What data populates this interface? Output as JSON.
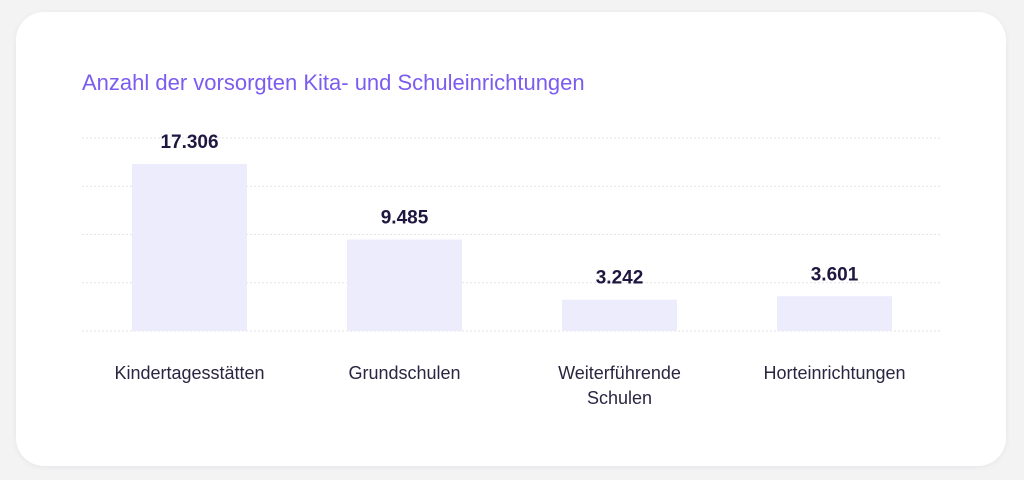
{
  "chart_data": {
    "type": "bar",
    "title": "Anzahl der vorsorgten Kita- und Schuleinrichtungen",
    "categories": [
      "Kindertagesstätten",
      "Grundschulen",
      "Weiterführende Schulen",
      "Horteinrichtungen"
    ],
    "category_lines": [
      [
        "Kindertagesstätten"
      ],
      [
        "Grundschulen"
      ],
      [
        "Weiterführende",
        "Schulen"
      ],
      [
        "Horteinrichtungen"
      ]
    ],
    "values": [
      17306,
      9485,
      3242,
      3601
    ],
    "value_labels": [
      "17.306",
      "9.485",
      "3.242",
      "3.601"
    ],
    "ylim": [
      0,
      20000
    ],
    "grid": true,
    "legend": "none",
    "colors": {
      "bar": "#ececfd",
      "grid": "#e3e3e8",
      "title": "#7b5cf0",
      "value_text": "#1f1740",
      "category_text": "#2a2540"
    }
  }
}
